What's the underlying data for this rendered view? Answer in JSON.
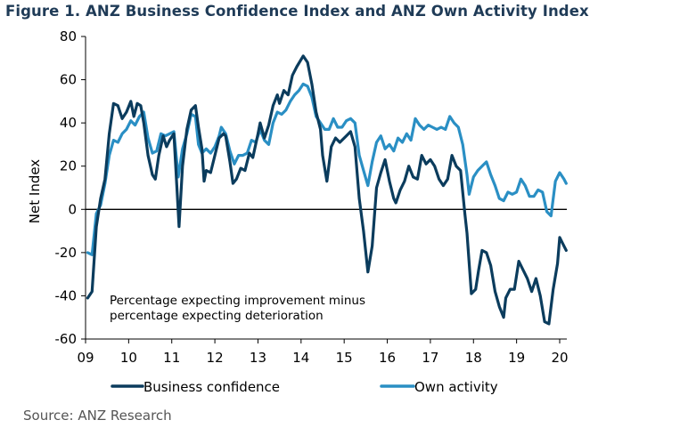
{
  "title": "Figure 1. ANZ Business Confidence Index and ANZ Own Activity Index",
  "source": "Source: ANZ Research",
  "colors": {
    "title": "#1f3b57",
    "business": "#0b3c5d",
    "own": "#2a8fc4",
    "axis": "#000000",
    "source": "#555555"
  },
  "chart_data": {
    "type": "line",
    "title": "Figure 1. ANZ Business Confidence Index and ANZ Own Activity Index",
    "xlabel": "",
    "ylabel": "Net Index",
    "xlim": [
      2009.0,
      2020.2
    ],
    "ylim": [
      -60,
      80
    ],
    "y_ticks": [
      80,
      60,
      40,
      20,
      0,
      -20,
      -40,
      -60
    ],
    "x_ticks": [
      {
        "value": 2009,
        "label": "09"
      },
      {
        "value": 2010,
        "label": "10"
      },
      {
        "value": 2011,
        "label": "11"
      },
      {
        "value": 2012,
        "label": "12"
      },
      {
        "value": 2013,
        "label": "13"
      },
      {
        "value": 2014,
        "label": "14"
      },
      {
        "value": 2015,
        "label": "15"
      },
      {
        "value": 2016,
        "label": "16"
      },
      {
        "value": 2017,
        "label": "17"
      },
      {
        "value": 2018,
        "label": "18"
      },
      {
        "value": 2019,
        "label": "19"
      },
      {
        "value": 2020,
        "label": "20"
      }
    ],
    "annotation": [
      "Percentage expecting improvement minus",
      "percentage expecting deterioration"
    ],
    "legend_position": "bottom",
    "series": [
      {
        "name": "Business confidence",
        "color": "#0b3c5d",
        "points": [
          [
            2009.05,
            -41
          ],
          [
            2009.15,
            -38
          ],
          [
            2009.25,
            -8
          ],
          [
            2009.35,
            5
          ],
          [
            2009.45,
            14
          ],
          [
            2009.55,
            35
          ],
          [
            2009.65,
            49
          ],
          [
            2009.75,
            48
          ],
          [
            2009.85,
            42
          ],
          [
            2009.95,
            45
          ],
          [
            2010.05,
            50
          ],
          [
            2010.12,
            43
          ],
          [
            2010.2,
            49
          ],
          [
            2010.28,
            48
          ],
          [
            2010.35,
            40
          ],
          [
            2010.45,
            25
          ],
          [
            2010.55,
            16
          ],
          [
            2010.62,
            14
          ],
          [
            2010.7,
            25
          ],
          [
            2010.8,
            34
          ],
          [
            2010.88,
            29
          ],
          [
            2010.95,
            32
          ],
          [
            2011.05,
            35
          ],
          [
            2011.12,
            10
          ],
          [
            2011.17,
            -8
          ],
          [
            2011.25,
            20
          ],
          [
            2011.35,
            37
          ],
          [
            2011.45,
            46
          ],
          [
            2011.55,
            48
          ],
          [
            2011.62,
            38
          ],
          [
            2011.7,
            28
          ],
          [
            2011.75,
            13
          ],
          [
            2011.8,
            18
          ],
          [
            2011.9,
            17
          ],
          [
            2012.0,
            25
          ],
          [
            2012.1,
            33
          ],
          [
            2012.2,
            35
          ],
          [
            2012.25,
            34
          ],
          [
            2012.35,
            22
          ],
          [
            2012.42,
            12
          ],
          [
            2012.5,
            14
          ],
          [
            2012.6,
            19
          ],
          [
            2012.7,
            18
          ],
          [
            2012.8,
            26
          ],
          [
            2012.88,
            24
          ],
          [
            2013.0,
            35
          ],
          [
            2013.05,
            40
          ],
          [
            2013.15,
            33
          ],
          [
            2013.25,
            39
          ],
          [
            2013.35,
            48
          ],
          [
            2013.45,
            53
          ],
          [
            2013.5,
            49
          ],
          [
            2013.6,
            55
          ],
          [
            2013.7,
            53
          ],
          [
            2013.8,
            62
          ],
          [
            2013.9,
            66
          ],
          [
            2014.05,
            71
          ],
          [
            2014.15,
            68
          ],
          [
            2014.25,
            58
          ],
          [
            2014.35,
            45
          ],
          [
            2014.45,
            37
          ],
          [
            2014.5,
            25
          ],
          [
            2014.6,
            13
          ],
          [
            2014.7,
            29
          ],
          [
            2014.8,
            33
          ],
          [
            2014.9,
            31
          ],
          [
            2015.05,
            34
          ],
          [
            2015.15,
            36
          ],
          [
            2015.25,
            29
          ],
          [
            2015.35,
            5
          ],
          [
            2015.45,
            -10
          ],
          [
            2015.55,
            -29
          ],
          [
            2015.65,
            -17
          ],
          [
            2015.75,
            10
          ],
          [
            2015.85,
            17
          ],
          [
            2015.95,
            23
          ],
          [
            2016.05,
            13
          ],
          [
            2016.15,
            5
          ],
          [
            2016.2,
            3
          ],
          [
            2016.3,
            9
          ],
          [
            2016.4,
            13
          ],
          [
            2016.5,
            20
          ],
          [
            2016.6,
            15
          ],
          [
            2016.7,
            14
          ],
          [
            2016.8,
            25
          ],
          [
            2016.9,
            21
          ],
          [
            2017.0,
            23
          ],
          [
            2017.1,
            20
          ],
          [
            2017.2,
            14
          ],
          [
            2017.3,
            11
          ],
          [
            2017.4,
            14
          ],
          [
            2017.5,
            25
          ],
          [
            2017.6,
            20
          ],
          [
            2017.7,
            18
          ],
          [
            2017.8,
            -2
          ],
          [
            2017.85,
            -11
          ],
          [
            2017.95,
            -39
          ],
          [
            2018.05,
            -37
          ],
          [
            2018.12,
            -28
          ],
          [
            2018.2,
            -19
          ],
          [
            2018.3,
            -20
          ],
          [
            2018.4,
            -26
          ],
          [
            2018.5,
            -38
          ],
          [
            2018.6,
            -45
          ],
          [
            2018.7,
            -50
          ],
          [
            2018.75,
            -41
          ],
          [
            2018.85,
            -37
          ],
          [
            2018.95,
            -37
          ],
          [
            2019.05,
            -24
          ],
          [
            2019.15,
            -28
          ],
          [
            2019.25,
            -32
          ],
          [
            2019.35,
            -38
          ],
          [
            2019.45,
            -32
          ],
          [
            2019.55,
            -40
          ],
          [
            2019.65,
            -52
          ],
          [
            2019.75,
            -53
          ],
          [
            2019.85,
            -37
          ],
          [
            2019.95,
            -25
          ],
          [
            2020.0,
            -13
          ],
          [
            2020.05,
            -15
          ],
          [
            2020.15,
            -19
          ]
        ]
      },
      {
        "name": "Own activity",
        "color": "#2a8fc4",
        "points": [
          [
            2009.05,
            -20
          ],
          [
            2009.15,
            -21
          ],
          [
            2009.25,
            -2
          ],
          [
            2009.35,
            2
          ],
          [
            2009.45,
            12
          ],
          [
            2009.55,
            25
          ],
          [
            2009.65,
            32
          ],
          [
            2009.75,
            31
          ],
          [
            2009.85,
            35
          ],
          [
            2009.95,
            37
          ],
          [
            2010.05,
            41
          ],
          [
            2010.15,
            39
          ],
          [
            2010.25,
            43
          ],
          [
            2010.35,
            45
          ],
          [
            2010.45,
            33
          ],
          [
            2010.55,
            26
          ],
          [
            2010.65,
            27
          ],
          [
            2010.75,
            35
          ],
          [
            2010.85,
            34
          ],
          [
            2010.95,
            35
          ],
          [
            2011.05,
            36
          ],
          [
            2011.15,
            15
          ],
          [
            2011.25,
            28
          ],
          [
            2011.35,
            35
          ],
          [
            2011.45,
            44
          ],
          [
            2011.55,
            43
          ],
          [
            2011.62,
            30
          ],
          [
            2011.7,
            26
          ],
          [
            2011.8,
            28
          ],
          [
            2011.9,
            26
          ],
          [
            2012.0,
            29
          ],
          [
            2012.1,
            34
          ],
          [
            2012.15,
            38
          ],
          [
            2012.25,
            35
          ],
          [
            2012.35,
            27
          ],
          [
            2012.45,
            21
          ],
          [
            2012.55,
            25
          ],
          [
            2012.65,
            25
          ],
          [
            2012.75,
            26
          ],
          [
            2012.85,
            32
          ],
          [
            2012.95,
            31
          ],
          [
            2013.05,
            37
          ],
          [
            2013.15,
            32
          ],
          [
            2013.25,
            30
          ],
          [
            2013.35,
            40
          ],
          [
            2013.45,
            45
          ],
          [
            2013.55,
            44
          ],
          [
            2013.65,
            46
          ],
          [
            2013.75,
            50
          ],
          [
            2013.85,
            53
          ],
          [
            2013.95,
            55
          ],
          [
            2014.05,
            58
          ],
          [
            2014.15,
            57
          ],
          [
            2014.25,
            52
          ],
          [
            2014.35,
            43
          ],
          [
            2014.45,
            40
          ],
          [
            2014.55,
            37
          ],
          [
            2014.65,
            37
          ],
          [
            2014.75,
            42
          ],
          [
            2014.85,
            38
          ],
          [
            2014.95,
            38
          ],
          [
            2015.05,
            41
          ],
          [
            2015.15,
            42
          ],
          [
            2015.25,
            40
          ],
          [
            2015.35,
            25
          ],
          [
            2015.45,
            18
          ],
          [
            2015.55,
            11
          ],
          [
            2015.65,
            22
          ],
          [
            2015.75,
            31
          ],
          [
            2015.85,
            34
          ],
          [
            2015.95,
            28
          ],
          [
            2016.05,
            30
          ],
          [
            2016.15,
            27
          ],
          [
            2016.25,
            33
          ],
          [
            2016.35,
            31
          ],
          [
            2016.45,
            35
          ],
          [
            2016.55,
            32
          ],
          [
            2016.65,
            42
          ],
          [
            2016.75,
            39
          ],
          [
            2016.85,
            37
          ],
          [
            2016.95,
            39
          ],
          [
            2017.05,
            38
          ],
          [
            2017.15,
            37
          ],
          [
            2017.25,
            38
          ],
          [
            2017.35,
            37
          ],
          [
            2017.45,
            43
          ],
          [
            2017.55,
            40
          ],
          [
            2017.65,
            38
          ],
          [
            2017.75,
            30
          ],
          [
            2017.85,
            16
          ],
          [
            2017.9,
            7
          ],
          [
            2018.0,
            15
          ],
          [
            2018.1,
            18
          ],
          [
            2018.2,
            20
          ],
          [
            2018.3,
            22
          ],
          [
            2018.4,
            16
          ],
          [
            2018.5,
            11
          ],
          [
            2018.6,
            5
          ],
          [
            2018.7,
            4
          ],
          [
            2018.8,
            8
          ],
          [
            2018.9,
            7
          ],
          [
            2019.0,
            8
          ],
          [
            2019.1,
            14
          ],
          [
            2019.2,
            11
          ],
          [
            2019.3,
            6
          ],
          [
            2019.4,
            6
          ],
          [
            2019.5,
            9
          ],
          [
            2019.6,
            8
          ],
          [
            2019.7,
            -1
          ],
          [
            2019.8,
            -3
          ],
          [
            2019.9,
            13
          ],
          [
            2020.0,
            17
          ],
          [
            2020.1,
            14
          ],
          [
            2020.15,
            12
          ]
        ]
      }
    ]
  }
}
